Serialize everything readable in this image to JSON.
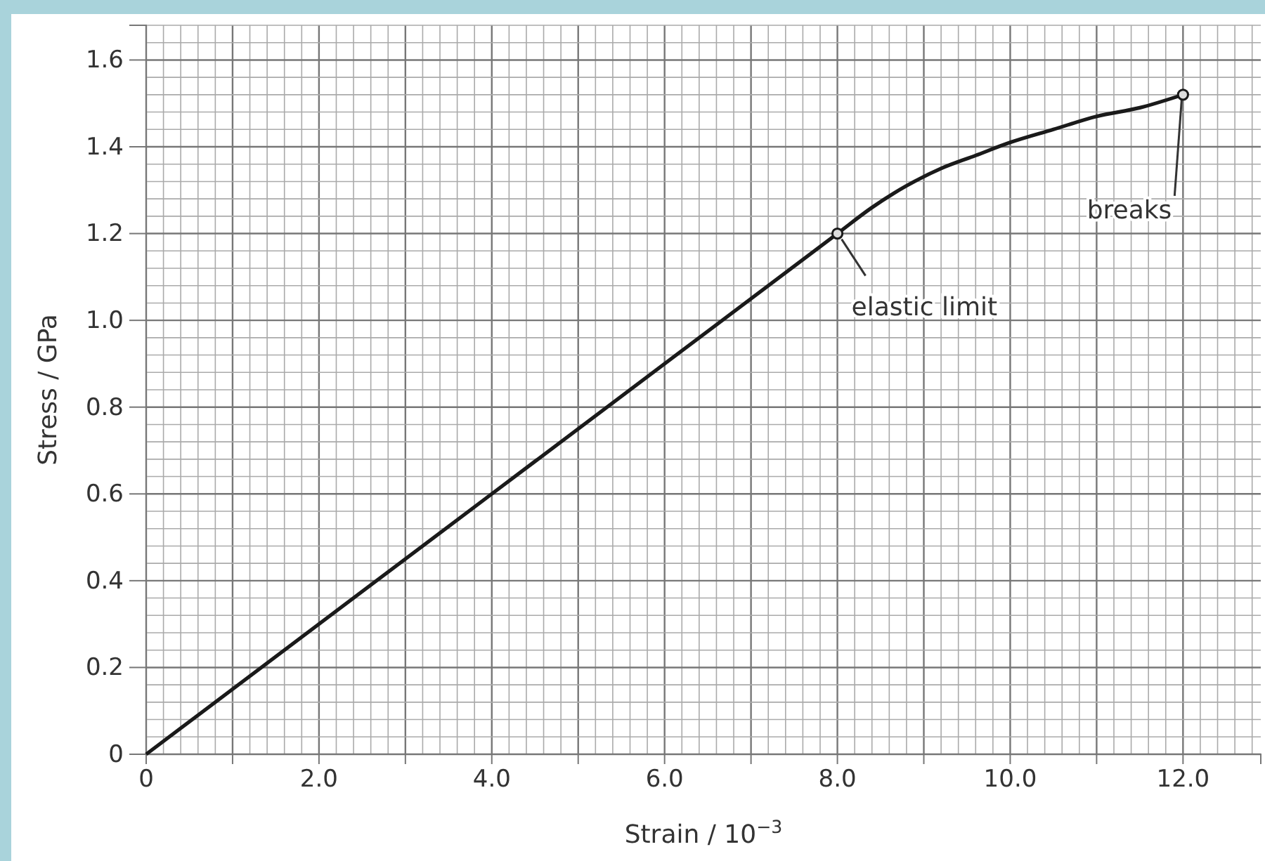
{
  "chart_data": {
    "type": "line",
    "xlabel": "Strain / 10$^{−3}$",
    "ylabel": "Stress / GPa",
    "xlim": [
      0,
      12.9
    ],
    "ylim": [
      0,
      1.68
    ],
    "xticks": [
      0,
      {
        "value": 1,
        "label": null
      },
      {
        "value": 2,
        "label": "2.0"
      },
      {
        "value": 3,
        "label": null
      },
      {
        "value": 4,
        "label": "4.0"
      },
      {
        "value": 5,
        "label": null
      },
      {
        "value": 6,
        "label": "6.0"
      },
      {
        "value": 7,
        "label": null
      },
      {
        "value": 8,
        "label": "8.0"
      },
      {
        "value": 9,
        "label": null
      },
      {
        "value": 10,
        "label": "10.0"
      },
      {
        "value": 11,
        "label": null
      },
      {
        "value": 12,
        "label": "12.0"
      }
    ],
    "yticks": [
      0,
      0.2,
      0.4,
      0.6,
      0.8,
      {
        "value": 1,
        "label": "1.0"
      },
      1.2,
      1.4,
      1.6
    ],
    "grid": true,
    "series": [
      {
        "color": "#1a1a1a",
        "x": [
          0,
          8.0,
          8.4,
          8.8,
          9.2,
          9.6,
          10.0,
          10.5,
          11.0,
          11.5,
          12.0
        ],
        "values": [
          0,
          1.2,
          1.26,
          1.31,
          1.35,
          1.38,
          1.41,
          1.44,
          1.47,
          1.49,
          1.52
        ],
        "marker": "none"
      },
      {
        "type": "scatter",
        "color": "#1a1a1a",
        "x": [
          8.0,
          12.0
        ],
        "values": [
          1.2,
          1.52
        ],
        "marker": "circle"
      }
    ],
    "annotations": [
      {
        "text": "elastic limit",
        "x": 8.0,
        "y": 1.2
      },
      {
        "text": "breaks",
        "x": 12.0,
        "y": 1.52
      }
    ]
  }
}
